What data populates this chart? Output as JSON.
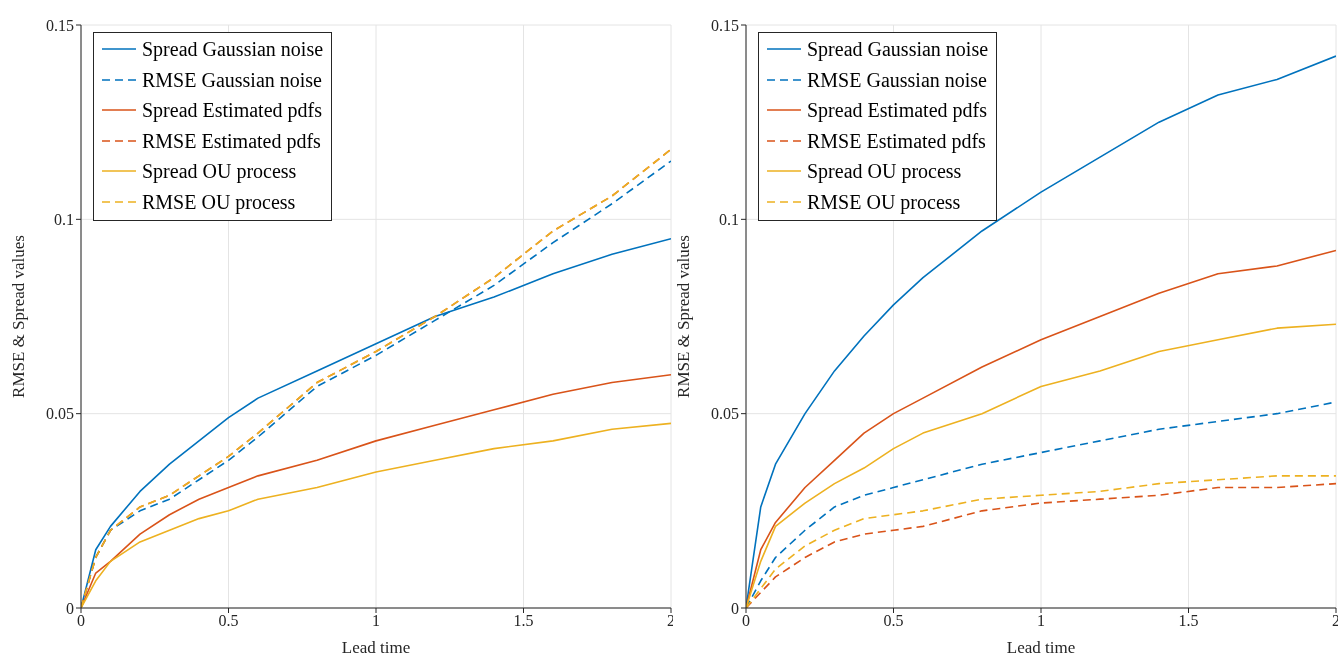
{
  "chart_data": [
    {
      "type": "line",
      "xlabel": "Lead time",
      "ylabel": "RMSE & Spread values",
      "x": [
        0,
        0.05,
        0.1,
        0.2,
        0.3,
        0.4,
        0.5,
        0.6,
        0.8,
        1.0,
        1.2,
        1.4,
        1.6,
        1.8,
        2.0
      ],
      "xlim": [
        0,
        2
      ],
      "xticks": [
        0,
        0.5,
        1,
        1.5,
        2
      ],
      "ylim": [
        0,
        0.15
      ],
      "yticks": [
        0,
        0.05,
        0.1,
        0.15
      ],
      "grid": true,
      "legend": "top left",
      "marker": "none",
      "series": [
        {
          "name": "Spread Gaussian noise",
          "color": "#0072bd",
          "line_style": "solid",
          "values": [
            0,
            0.015,
            0.021,
            0.03,
            0.037,
            0.043,
            0.049,
            0.054,
            0.061,
            0.068,
            0.075,
            0.08,
            0.086,
            0.091,
            0.095
          ]
        },
        {
          "name": "RMSE Gaussian noise",
          "color": "#0072bd",
          "line_style": "dashed",
          "values": [
            0,
            0.013,
            0.02,
            0.025,
            0.028,
            0.033,
            0.038,
            0.044,
            0.057,
            0.065,
            0.074,
            0.083,
            0.094,
            0.104,
            0.115
          ]
        },
        {
          "name": "Spread Estimated pdfs",
          "color": "#d95319",
          "line_style": "solid",
          "values": [
            0,
            0.009,
            0.012,
            0.019,
            0.024,
            0.028,
            0.031,
            0.034,
            0.038,
            0.043,
            0.047,
            0.051,
            0.055,
            0.058,
            0.06
          ]
        },
        {
          "name": "RMSE Estimated pdfs",
          "color": "#d95319",
          "line_style": "dashed",
          "values": [
            0,
            0.013,
            0.02,
            0.026,
            0.029,
            0.034,
            0.039,
            0.045,
            0.058,
            0.066,
            0.075,
            0.085,
            0.097,
            0.106,
            0.118
          ]
        },
        {
          "name": "Spread OU process",
          "color": "#edb120",
          "line_style": "solid",
          "values": [
            0,
            0.007,
            0.012,
            0.017,
            0.02,
            0.023,
            0.025,
            0.028,
            0.031,
            0.035,
            0.038,
            0.041,
            0.043,
            0.046,
            0.0475
          ]
        },
        {
          "name": "RMSE OU process",
          "color": "#edb120",
          "line_style": "dashed",
          "values": [
            0,
            0.013,
            0.02,
            0.026,
            0.029,
            0.034,
            0.039,
            0.045,
            0.058,
            0.066,
            0.075,
            0.085,
            0.097,
            0.106,
            0.118
          ]
        }
      ]
    },
    {
      "type": "line",
      "xlabel": "Lead time",
      "ylabel": "RMSE & Spread values",
      "x": [
        0,
        0.05,
        0.1,
        0.2,
        0.3,
        0.4,
        0.5,
        0.6,
        0.8,
        1.0,
        1.2,
        1.4,
        1.6,
        1.8,
        2.0
      ],
      "xlim": [
        0,
        2
      ],
      "xticks": [
        0,
        0.5,
        1,
        1.5,
        2
      ],
      "ylim": [
        0,
        0.15
      ],
      "yticks": [
        0,
        0.05,
        0.1,
        0.15
      ],
      "grid": true,
      "legend": "top left",
      "marker": "none",
      "series": [
        {
          "name": "Spread Gaussian noise",
          "color": "#0072bd",
          "line_style": "solid",
          "values": [
            0,
            0.026,
            0.037,
            0.05,
            0.061,
            0.07,
            0.078,
            0.085,
            0.097,
            0.107,
            0.116,
            0.125,
            0.132,
            0.136,
            0.142
          ]
        },
        {
          "name": "RMSE Gaussian noise",
          "color": "#0072bd",
          "line_style": "dashed",
          "values": [
            0,
            0.007,
            0.013,
            0.02,
            0.026,
            0.029,
            0.031,
            0.033,
            0.037,
            0.04,
            0.043,
            0.046,
            0.048,
            0.05,
            0.053
          ]
        },
        {
          "name": "Spread Estimated pdfs",
          "color": "#d95319",
          "line_style": "solid",
          "values": [
            0,
            0.015,
            0.022,
            0.031,
            0.038,
            0.045,
            0.05,
            0.054,
            0.062,
            0.069,
            0.075,
            0.081,
            0.086,
            0.088,
            0.092
          ]
        },
        {
          "name": "RMSE Estimated pdfs",
          "color": "#d95319",
          "line_style": "dashed",
          "values": [
            0,
            0.004,
            0.008,
            0.013,
            0.017,
            0.019,
            0.02,
            0.021,
            0.025,
            0.027,
            0.028,
            0.029,
            0.031,
            0.031,
            0.032
          ]
        },
        {
          "name": "Spread OU process",
          "color": "#edb120",
          "line_style": "solid",
          "values": [
            0,
            0.012,
            0.021,
            0.027,
            0.032,
            0.036,
            0.041,
            0.045,
            0.05,
            0.057,
            0.061,
            0.066,
            0.069,
            0.072,
            0.073
          ]
        },
        {
          "name": "RMSE OU process",
          "color": "#edb120",
          "line_style": "dashed",
          "values": [
            0,
            0.005,
            0.01,
            0.016,
            0.02,
            0.023,
            0.024,
            0.025,
            0.028,
            0.029,
            0.03,
            0.032,
            0.033,
            0.034,
            0.034
          ]
        }
      ]
    }
  ]
}
